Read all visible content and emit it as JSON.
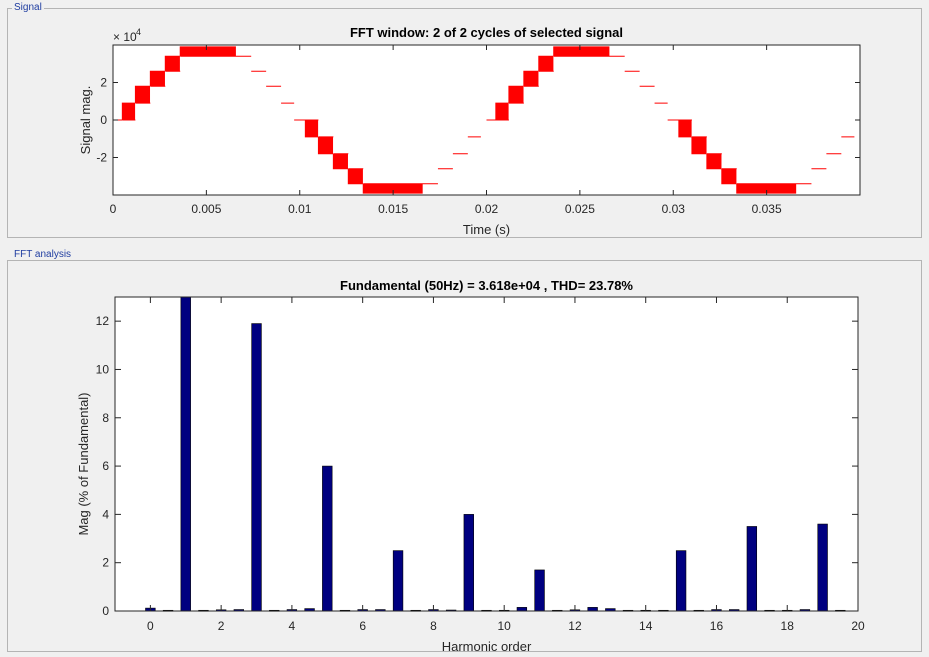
{
  "panels": {
    "signal_label": "Signal",
    "fft_label": "FFT analysis"
  },
  "colors": {
    "signal": "#ff0000",
    "bars": "#000080",
    "axes": "#262626",
    "plot_bg": "#ffffff",
    "page_bg": "#f0f0f0"
  },
  "chart_data": [
    {
      "type": "line",
      "title": "FFT window: 2 of 2 cycles of selected signal",
      "xlabel": "Time (s)",
      "ylabel": "Signal mag.",
      "y_exponent_label": "× 10",
      "y_exponent": "4",
      "xlim": [
        0,
        0.04
      ],
      "ylim": [
        -4,
        4
      ],
      "x_ticks": [
        0,
        0.005,
        0.01,
        0.015,
        0.02,
        0.025,
        0.03,
        0.035
      ],
      "x_tick_labels": [
        "0",
        "0.005",
        "0.01",
        "0.015",
        "0.02",
        "0.025",
        "0.03",
        "0.035"
      ],
      "y_ticks": [
        -2,
        0,
        2
      ],
      "y_tick_labels": [
        "-2",
        "0",
        "2"
      ],
      "y_unit_scale": 10000,
      "fundamental_hz": 50,
      "series": [
        {
          "step_levels_x1e4": [
            0,
            0.9,
            1.8,
            2.6,
            3.4,
            3.9,
            3.4,
            2.6,
            1.8,
            0.9,
            0,
            -0.9,
            -1.8,
            -2.6,
            -3.4,
            -3.9,
            -3.4,
            -2.6,
            -1.8,
            -0.9
          ],
          "step_ms_segments": [
            [
              0,
              0.0005
            ],
            [
              0.0005,
              0.0012
            ],
            [
              0.0012,
              0.002
            ],
            [
              0.002,
              0.0028
            ],
            [
              0.0028,
              0.0036
            ],
            [
              0.0036,
              0.0066
            ],
            [
              0.0066,
              0.0074
            ],
            [
              0.0074,
              0.0082
            ],
            [
              0.0082,
              0.009
            ],
            [
              0.009,
              0.0097
            ],
            [
              0.0097,
              0.0103
            ],
            [
              0.0103,
              0.011
            ],
            [
              0.011,
              0.0118
            ],
            [
              0.0118,
              0.0126
            ],
            [
              0.0126,
              0.0134
            ],
            [
              0.0134,
              0.0166
            ],
            [
              0.0166,
              0.0174
            ],
            [
              0.0174,
              0.0182
            ],
            [
              0.0182,
              0.019
            ],
            [
              0.019,
              0.0197
            ]
          ]
        }
      ]
    },
    {
      "type": "bar",
      "title": "Fundamental (50Hz) = 3.618e+04 , THD= 23.78%",
      "xlabel": "Harmonic order",
      "ylabel": "Mag (% of Fundamental)",
      "xlim": [
        -1,
        20
      ],
      "ylim": [
        0,
        13
      ],
      "x_ticks": [
        0,
        2,
        4,
        6,
        8,
        10,
        12,
        14,
        16,
        18,
        20
      ],
      "y_ticks": [
        0,
        2,
        4,
        6,
        8,
        10,
        12
      ],
      "x": [
        0,
        0.5,
        1,
        1.5,
        2,
        2.5,
        3,
        3.5,
        4,
        4.5,
        5,
        5.5,
        6,
        6.5,
        7,
        7.5,
        8,
        8.5,
        9,
        9.5,
        10,
        10.5,
        11,
        11.5,
        12,
        12.5,
        13,
        13.5,
        14,
        14.5,
        15,
        15.5,
        16,
        16.5,
        17,
        17.5,
        18,
        18.5,
        19,
        19.5
      ],
      "values": [
        0.12,
        0.03,
        13.0,
        0.03,
        0.05,
        0.06,
        11.9,
        0.03,
        0.06,
        0.1,
        6.0,
        0.03,
        0.06,
        0.06,
        2.5,
        0.03,
        0.06,
        0.04,
        4.0,
        0.03,
        0.03,
        0.15,
        1.7,
        0.03,
        0.05,
        0.15,
        0.1,
        0.03,
        0.03,
        0.03,
        2.5,
        0.03,
        0.06,
        0.06,
        3.5,
        0.03,
        0.03,
        0.06,
        3.6,
        0.03
      ]
    }
  ]
}
